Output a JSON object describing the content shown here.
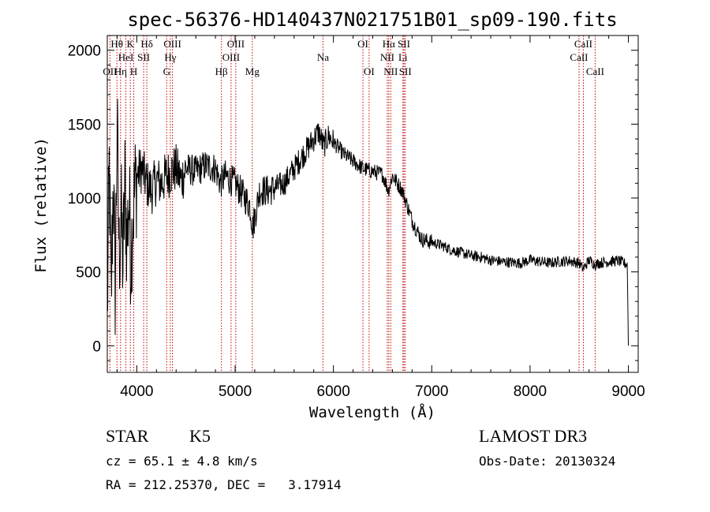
{
  "chart_data": {
    "type": "line",
    "title": "spec-56376-HD140437N021751B01_sp09-190.fits",
    "xlabel": "Wavelength (Å)",
    "ylabel": "Flux (relative)",
    "xlim": [
      3700,
      9100
    ],
    "ylim": [
      -180,
      2100
    ],
    "xticks": [
      4000,
      5000,
      6000,
      7000,
      8000,
      9000
    ],
    "yticks": [
      0,
      500,
      1000,
      1500,
      2000
    ],
    "grid": false,
    "series": [
      {
        "name": "flux",
        "x": [
          3700,
          3720,
          3740,
          3760,
          3780,
          3800,
          3820,
          3840,
          3860,
          3880,
          3900,
          3920,
          3940,
          3960,
          3980,
          4000,
          4050,
          4100,
          4150,
          4200,
          4250,
          4300,
          4350,
          4400,
          4450,
          4500,
          4600,
          4700,
          4800,
          4850,
          4900,
          5000,
          5100,
          5150,
          5180,
          5250,
          5350,
          5500,
          5600,
          5700,
          5800,
          5850,
          5900,
          5950,
          6000,
          6100,
          6200,
          6300,
          6400,
          6500,
          6560,
          6600,
          6650,
          6700,
          6750,
          6800,
          6850,
          6900,
          7000,
          7100,
          7200,
          7300,
          7400,
          7500,
          7600,
          7700,
          7800,
          7900,
          8000,
          8100,
          8200,
          8300,
          8400,
          8500,
          8540,
          8600,
          8662,
          8700,
          8800,
          8900,
          8950,
          8990,
          9000
        ],
        "values": [
          200,
          1200,
          300,
          1150,
          400,
          1500,
          600,
          900,
          550,
          1100,
          700,
          1000,
          600,
          900,
          1050,
          1150,
          1200,
          1100,
          1050,
          1120,
          1100,
          1150,
          1180,
          1200,
          1120,
          1200,
          1180,
          1220,
          1200,
          1100,
          1150,
          1100,
          1000,
          950,
          800,
          1050,
          1050,
          1100,
          1200,
          1300,
          1400,
          1450,
          1350,
          1420,
          1380,
          1300,
          1250,
          1200,
          1180,
          1160,
          1050,
          1150,
          1100,
          1050,
          950,
          850,
          780,
          720,
          700,
          680,
          650,
          630,
          610,
          600,
          580,
          570,
          565,
          560,
          580,
          570,
          560,
          570,
          575,
          560,
          520,
          580,
          550,
          560,
          570,
          575,
          560,
          550,
          0
        ]
      }
    ],
    "spectral_lines": [
      {
        "label": "OII",
        "x": 3727,
        "row": 2
      },
      {
        "label": "Hθ",
        "x": 3798,
        "row": 0
      },
      {
        "label": "Hη",
        "x": 3835,
        "row": 2
      },
      {
        "label": "HeI",
        "x": 3889,
        "row": 1
      },
      {
        "label": "K",
        "x": 3934,
        "row": 0
      },
      {
        "label": "H",
        "x": 3969,
        "row": 2
      },
      {
        "label": "SII",
        "x": 4070,
        "row": 1
      },
      {
        "label": "Hδ",
        "x": 4102,
        "row": 0
      },
      {
        "label": "G",
        "x": 4304,
        "row": 2
      },
      {
        "label": "Hγ",
        "x": 4341,
        "row": 1
      },
      {
        "label": "OIII",
        "x": 4363,
        "row": 0
      },
      {
        "label": "Hβ",
        "x": 4861,
        "row": 2
      },
      {
        "label": "OIII",
        "x": 4959,
        "row": 1
      },
      {
        "label": "OIII",
        "x": 5007,
        "row": 0
      },
      {
        "label": "Mg",
        "x": 5175,
        "row": 2
      },
      {
        "label": "Na",
        "x": 5894,
        "row": 1
      },
      {
        "label": "OI",
        "x": 6300,
        "row": 0
      },
      {
        "label": "OI",
        "x": 6363,
        "row": 2
      },
      {
        "label": "NII",
        "x": 6548,
        "row": 1
      },
      {
        "label": "Hα",
        "x": 6563,
        "row": 0
      },
      {
        "label": "NII",
        "x": 6583,
        "row": 2
      },
      {
        "label": "Li",
        "x": 6707,
        "row": 1
      },
      {
        "label": "SII",
        "x": 6717,
        "row": 0
      },
      {
        "label": "SII",
        "x": 6731,
        "row": 2
      },
      {
        "label": "CaII",
        "x": 8498,
        "row": 1
      },
      {
        "label": "CaII",
        "x": 8542,
        "row": 0
      },
      {
        "label": "CaII",
        "x": 8662,
        "row": 2
      }
    ],
    "line_marker_color": "#c00000"
  },
  "info": {
    "object_class": "STAR",
    "subclass": "K5",
    "survey": "LAMOST DR3",
    "redshift": "cz = 65.1 ± 4.8 km/s",
    "obs_date": "Obs-Date: 20130324",
    "coords": "RA = 212.25370, DEC =   3.17914"
  }
}
